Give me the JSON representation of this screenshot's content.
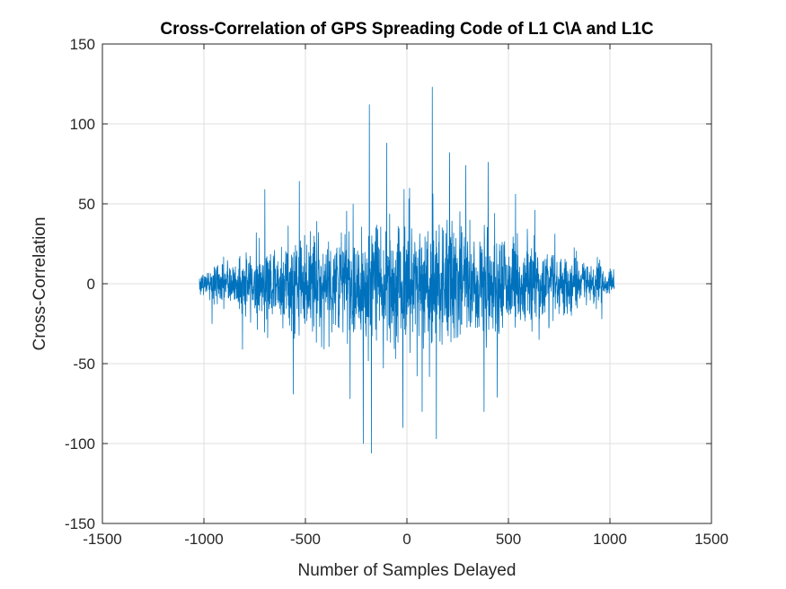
{
  "chart_data": {
    "type": "line",
    "title": "Cross-Correlation of GPS Spreading Code of L1 C\\A and L1C",
    "xlabel": "Number of Samples Delayed",
    "ylabel": "Cross-Correlation",
    "xlim": [
      -1500,
      1500
    ],
    "ylim": [
      -150,
      150
    ],
    "xticks": [
      -1500,
      -1000,
      -500,
      0,
      500,
      1000,
      1500
    ],
    "yticks": [
      -150,
      -100,
      -50,
      0,
      50,
      100,
      150
    ],
    "xtick_labels": [
      "-1500",
      "-1000",
      "-500",
      "0",
      "500",
      "1000",
      "1500"
    ],
    "ytick_labels": [
      "-150",
      "-100",
      "-50",
      "0",
      "50",
      "100",
      "150"
    ],
    "grid": true,
    "legend": "none",
    "series": [
      {
        "color": "#0072BD",
        "x_range": [
          -1022,
          1022
        ],
        "x_step": 1,
        "envelope": {
          "note_free": true,
          "peak_pos": [
            [
              -700,
              59
            ],
            [
              -530,
              64
            ],
            [
              -185,
              112
            ],
            [
              -100,
              88
            ],
            [
              125,
              123
            ],
            [
              210,
              82
            ],
            [
              290,
              74
            ],
            [
              400,
              76
            ],
            [
              535,
              56
            ],
            [
              630,
              46
            ]
          ],
          "peak_neg": [
            [
              -960,
              -25
            ],
            [
              -810,
              -41
            ],
            [
              -560,
              -69
            ],
            [
              -280,
              -72
            ],
            [
              -215,
              -100
            ],
            [
              -175,
              -106
            ],
            [
              -20,
              -90
            ],
            [
              75,
              -80
            ],
            [
              145,
              -97
            ],
            [
              380,
              -80
            ],
            [
              445,
              -71
            ],
            [
              700,
              -27
            ],
            [
              960,
              -22
            ]
          ],
          "amplitude_profile": [
            [
              -1022,
              8
            ],
            [
              -900,
              16
            ],
            [
              -700,
              28
            ],
            [
              -400,
              38
            ],
            [
              -150,
              46
            ],
            [
              0,
              48
            ],
            [
              150,
              46
            ],
            [
              400,
              38
            ],
            [
              700,
              28
            ],
            [
              900,
              16
            ],
            [
              1022,
              8
            ]
          ]
        }
      }
    ]
  },
  "colors": {
    "series": "#0072BD",
    "grid": "#dfdfdf",
    "axis": "#262626",
    "background": "#ffffff"
  }
}
